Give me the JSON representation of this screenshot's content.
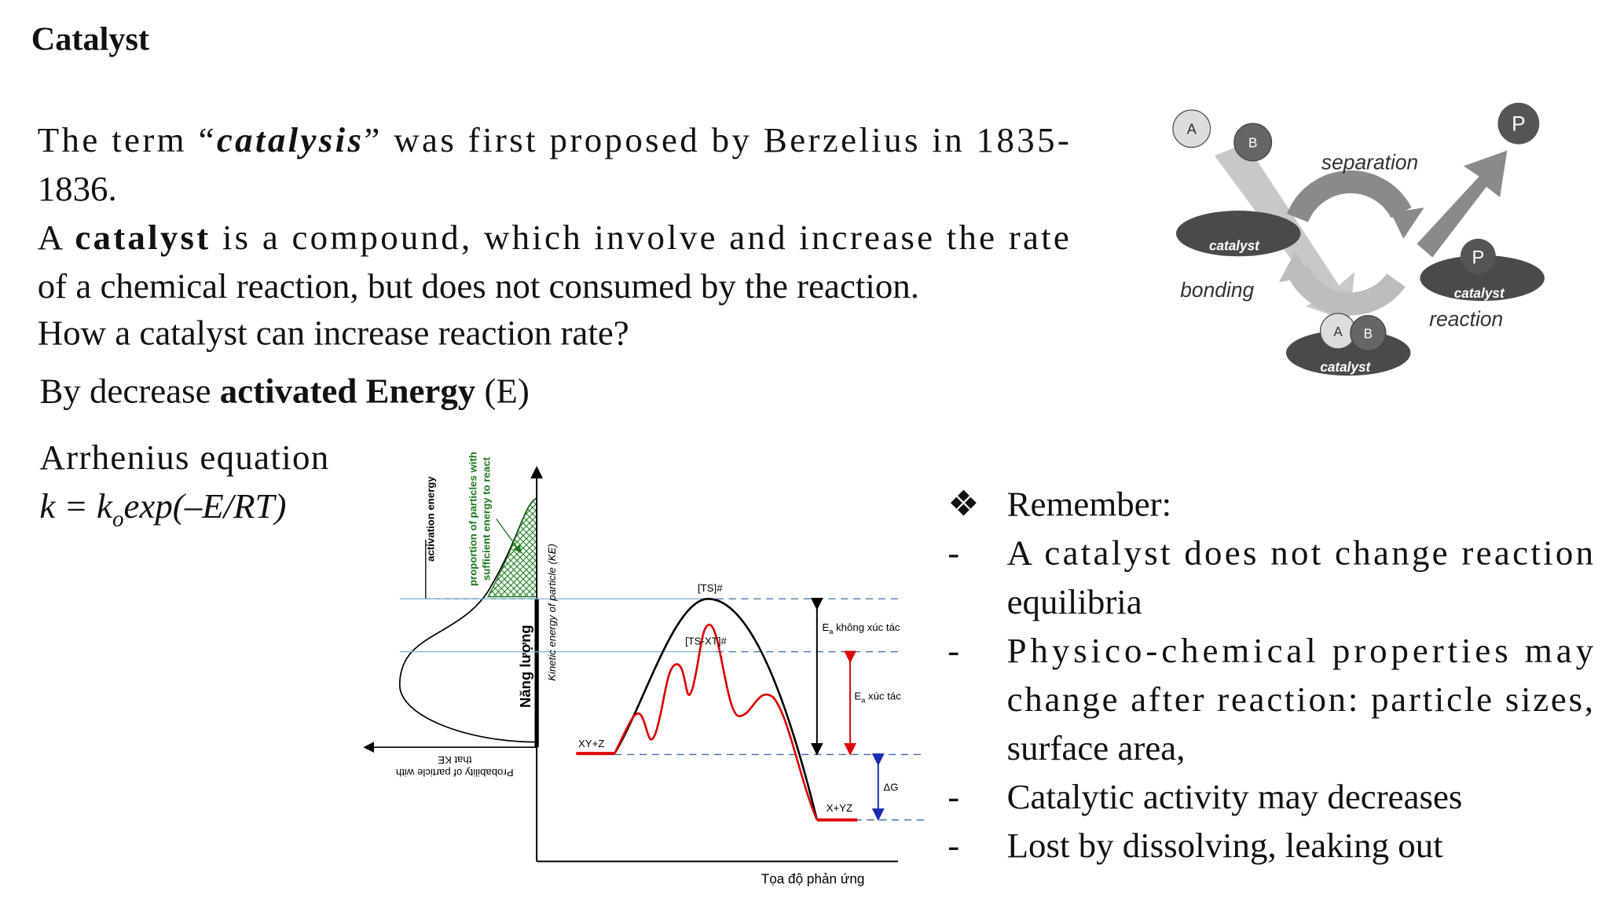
{
  "title": "Catalyst",
  "intro": {
    "lines": [
      [
        "The term “",
        "catalysis",
        "” was first proposed by Berzelius in 1835-"
      ],
      [
        "1836."
      ],
      [
        "A ",
        "catalyst",
        " is a compound, which involve and increase the rate"
      ],
      [
        "of a chemical reaction, but does not consumed by the reaction."
      ],
      [
        "How a catalyst can increase reaction rate?"
      ],
      [
        "By decrease ",
        "activated Energy",
        " (E)"
      ]
    ]
  },
  "equation": {
    "name": "Arrhenius equation",
    "formula": [
      "k = k",
      "o",
      "exp(–E/RT)"
    ]
  },
  "remember": {
    "heading_marker": "❖",
    "heading": "Remember:",
    "item_marker": "-",
    "items": [
      [
        "A catalyst does not change reaction",
        "equilibria"
      ],
      [
        "Physico-chemical properties may",
        "change after reaction: particle sizes,",
        "surface area,"
      ],
      [
        "Catalytic activity may decreases"
      ],
      [
        "Lost by dissolving, leaking out"
      ]
    ]
  },
  "cycle_diagram": {
    "a": "A",
    "b": "B",
    "p": "P",
    "catalyst": "catalyst",
    "separation": "separation",
    "bonding": "bonding",
    "reaction": "reaction"
  },
  "energy_diagram": {
    "activation_energy": "activation energy",
    "proportion": [
      "proportion of particles with",
      "sufficient energy to react"
    ],
    "y_axis": "Năng lượng",
    "ke_axis": "Kinetic energy of particle (KE)",
    "probability": [
      "Probability of particle with",
      "that KE"
    ],
    "ts": "[TS]#",
    "ts_xt": "[TS-XT]#",
    "ea": [
      "E",
      "a"
    ],
    "uncatalyzed": " không xúc tác",
    "catalyzed": " xúc tác",
    "reactants": "XY+Z",
    "delta_g": "ΔG",
    "products": "X+YZ",
    "x_axis": "Tọa độ phản ứng"
  }
}
